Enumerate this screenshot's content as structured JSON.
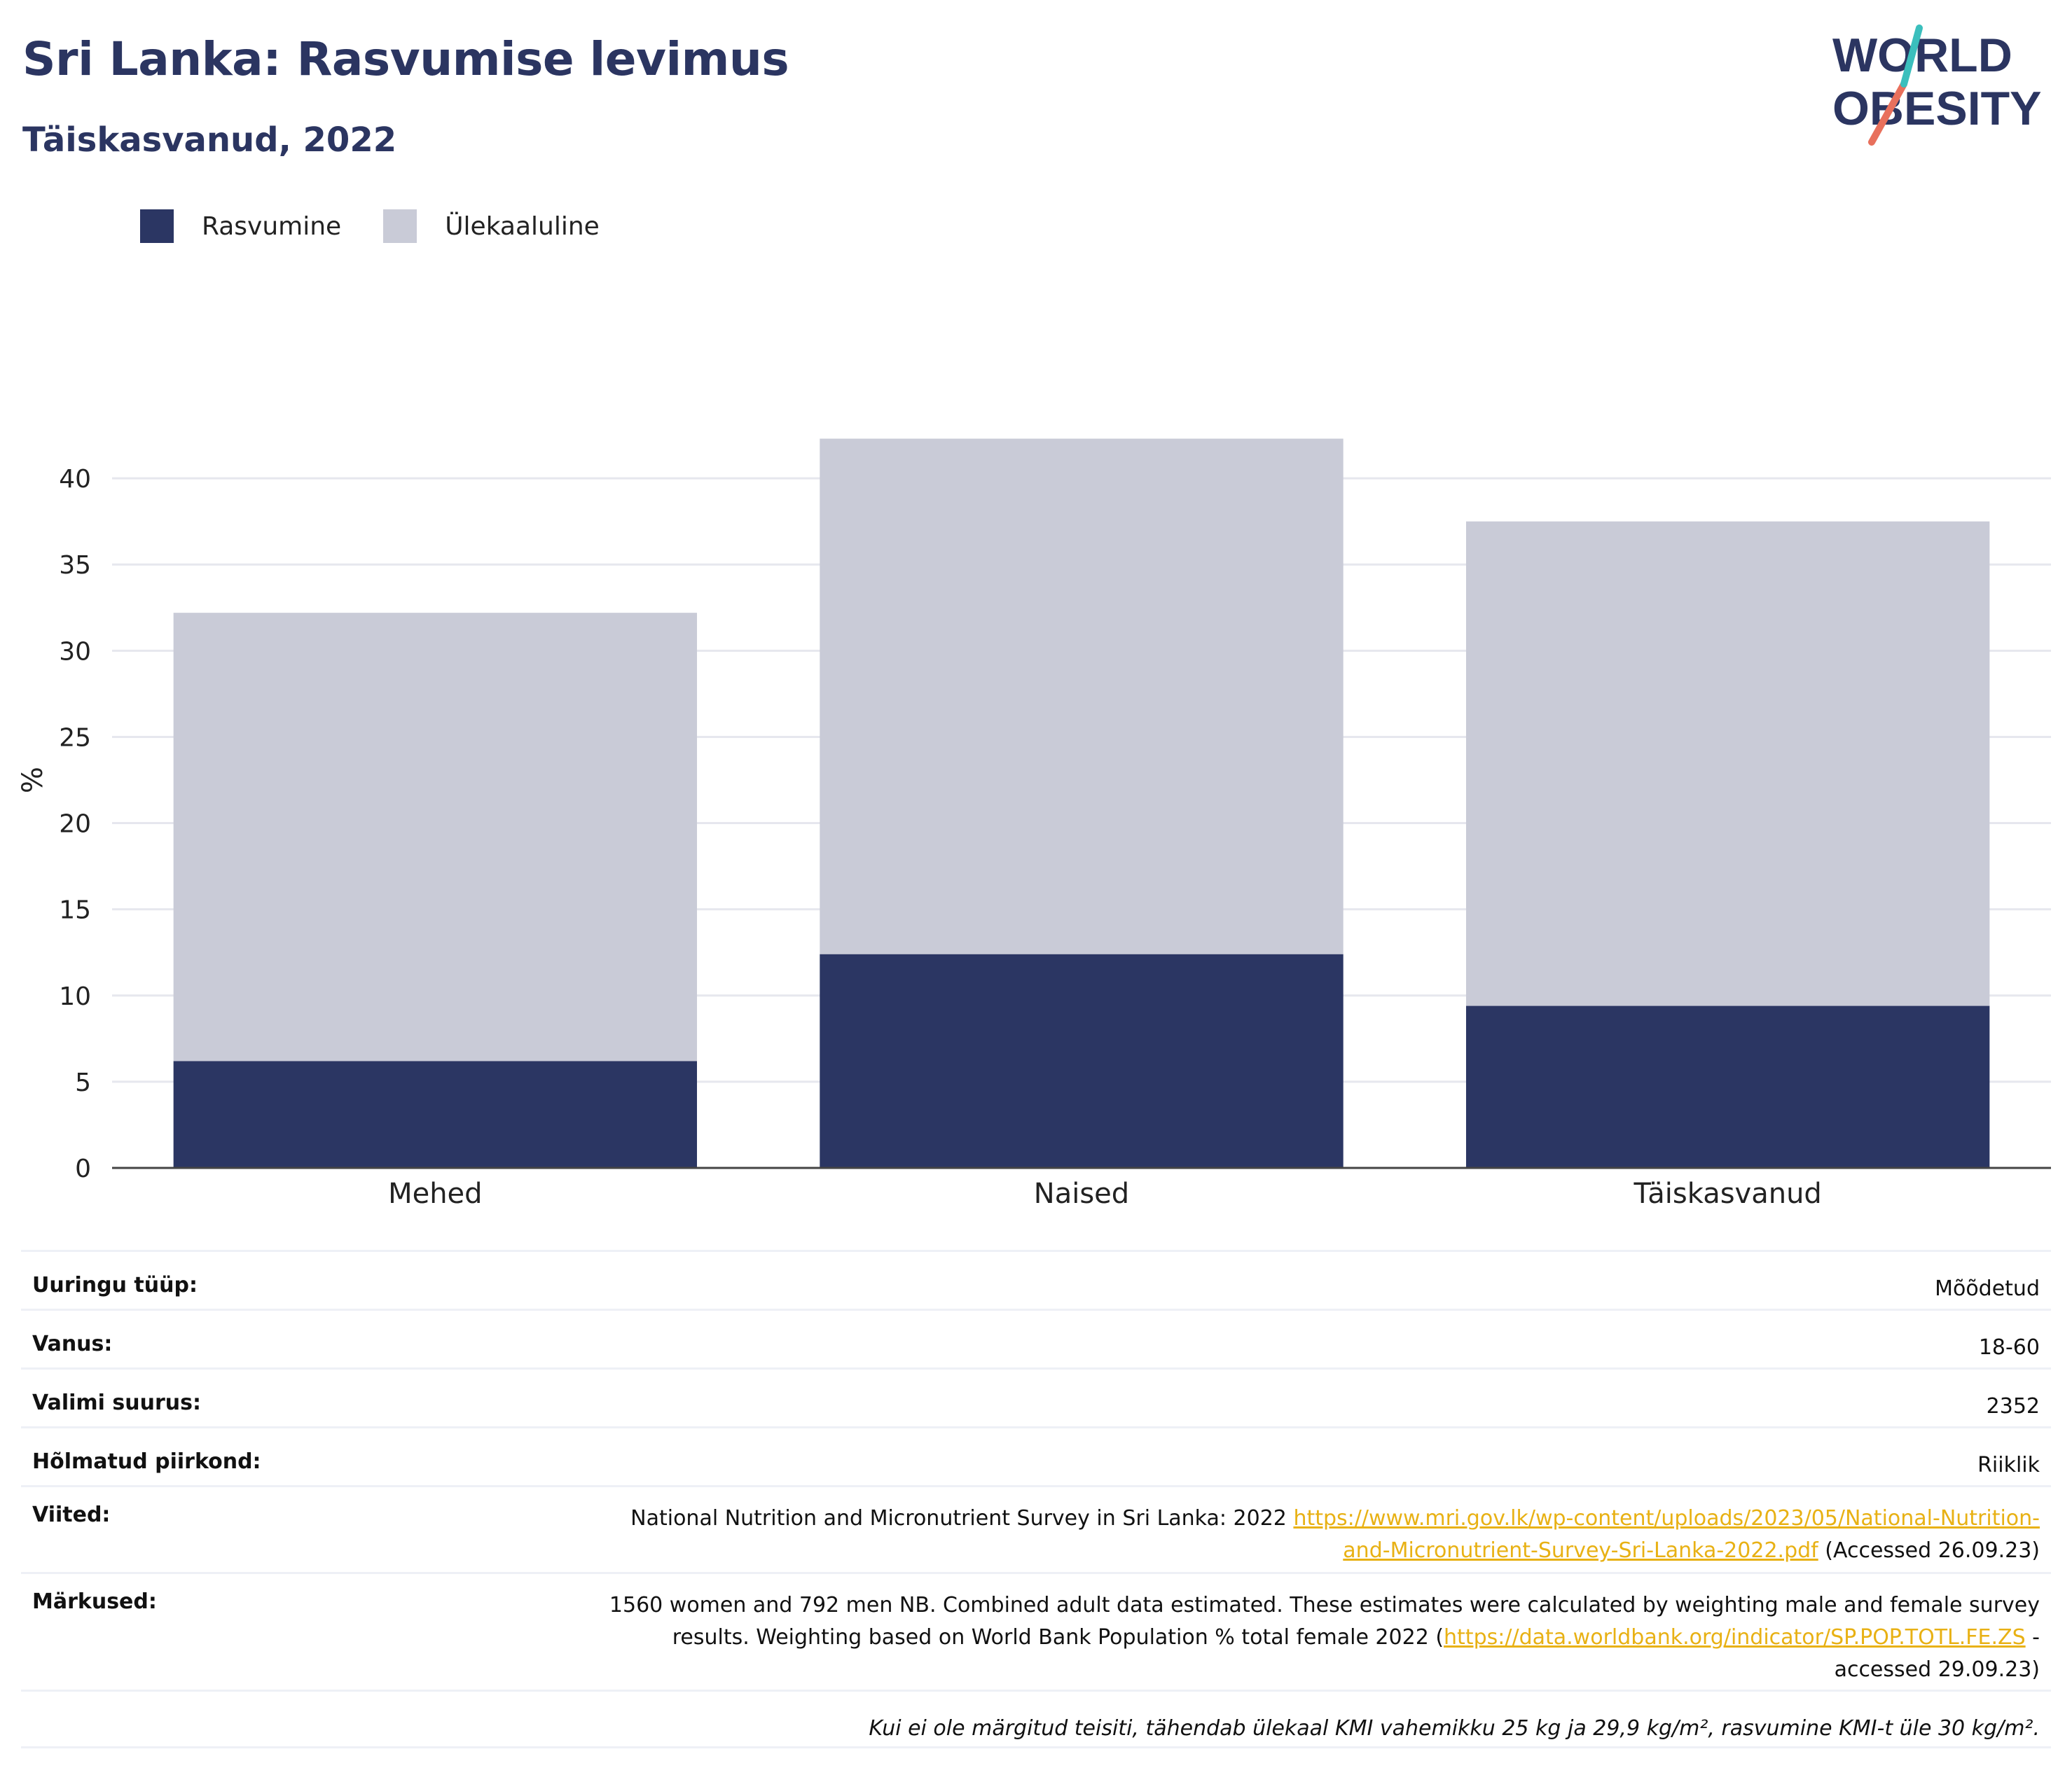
{
  "header": {
    "title": "Sri Lanka: Rasvumise levimus",
    "subtitle": "Täiskasvanud, 2022"
  },
  "logo": {
    "line1": "WORLD",
    "line2": "OBESITY"
  },
  "colors": {
    "obesity": "#2b3663",
    "overweight": "#c9cbd7",
    "title": "#2b3561",
    "link": "#e8b114"
  },
  "chart_data": {
    "type": "bar",
    "stacked": true,
    "categories": [
      "Mehed",
      "Naised",
      "Täiskasvanud"
    ],
    "series": [
      {
        "name": "Rasvumine",
        "values": [
          6.2,
          12.4,
          9.4
        ]
      },
      {
        "name": "Ülekaaluline",
        "values": [
          26.0,
          29.9,
          28.1
        ]
      }
    ],
    "ylabel": "%",
    "ylim": [
      0,
      45
    ],
    "yticks": [
      0,
      5,
      10,
      15,
      20,
      25,
      30,
      35,
      40
    ],
    "grid": true,
    "legend": "top-left"
  },
  "info": {
    "survey_type_label": "Uuringu tüüp:",
    "survey_type_value": "Mõõdetud",
    "age_label": "Vanus:",
    "age_value": "18-60",
    "sample_label": "Valimi suurus:",
    "sample_value": "2352",
    "area_label": "Hõlmatud piirkond:",
    "area_value": "Riiklik",
    "refs_label": "Viited:",
    "refs_text": "National Nutrition and Micronutrient Survey in Sri Lanka: 2022 ",
    "refs_link_1": "https://www.mri.gov.lk/wp-content/uploads/2023/05/National-Nutrition-",
    "refs_link_2": "and-Micronutrient-Survey-Sri-Lanka-2022.pdf",
    "refs_tail": " (Accessed 26.09.23)",
    "notes_label": "Märkused:",
    "notes_line1": "1560 women and 792 men NB. Combined adult data estimated. These estimates were calculated by weighting male and female survey",
    "notes_line2_pre": "results. Weighting based on World Bank Population % total female 2022 (",
    "notes_link": "https://data.worldbank.org/indicator/SP.POP.TOTL.FE.ZS",
    "notes_line2_post": " -",
    "notes_line3": "accessed 29.09.23)",
    "footnote": "Kui ei ole märgitud teisiti, tähendab ülekaal KMI vahemikku 25 kg ja 29,9 kg/m², rasvumine KMI-t üle 30 kg/m²."
  }
}
